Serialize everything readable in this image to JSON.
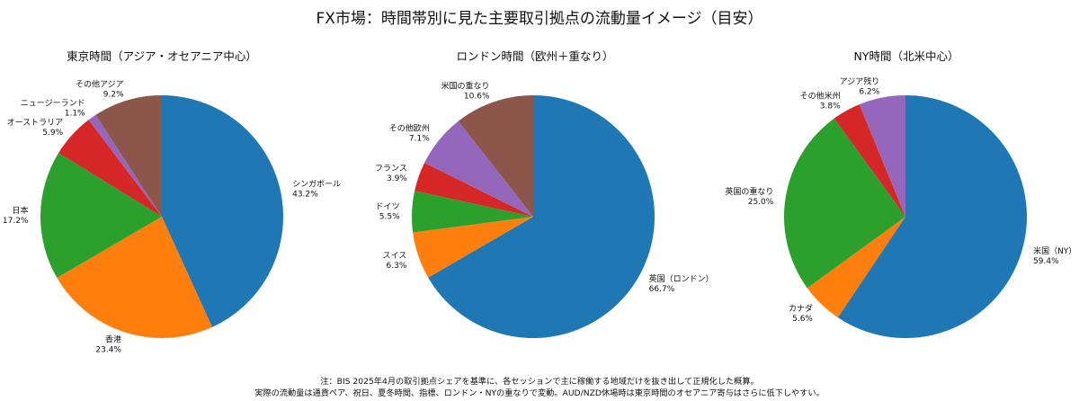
{
  "title": "FX市場：時間帯別に見た主要取引拠点の流動量イメージ（目安）",
  "chart_data": [
    {
      "type": "pie",
      "title": "東京時間（アジア・オセアニア中心）",
      "start": "top",
      "direction": "clockwise",
      "slices": [
        {
          "label": "シンガポール",
          "value": 43.2,
          "display": "43.2%",
          "color": "#1f77b4"
        },
        {
          "label": "香港",
          "value": 23.4,
          "display": "23.4%",
          "color": "#ff7f0e"
        },
        {
          "label": "日本",
          "value": 17.2,
          "display": "17.2%",
          "color": "#2ca02c"
        },
        {
          "label": "オーストラリア",
          "value": 5.9,
          "display": "5.9%",
          "color": "#d62728"
        },
        {
          "label": "ニュージーランド",
          "value": 1.1,
          "display": "1.1%",
          "color": "#9467bd"
        },
        {
          "label": "その他アジア",
          "value": 9.2,
          "display": "9.2%",
          "color": "#8c564b"
        }
      ]
    },
    {
      "type": "pie",
      "title": "ロンドン時間（欧州＋重なり）",
      "start": "top",
      "direction": "clockwise",
      "slices": [
        {
          "label": "英国（ロンドン）",
          "value": 66.7,
          "display": "66.7%",
          "color": "#1f77b4"
        },
        {
          "label": "スイス",
          "value": 6.3,
          "display": "6.3%",
          "color": "#ff7f0e"
        },
        {
          "label": "ドイツ",
          "value": 5.5,
          "display": "5.5%",
          "color": "#2ca02c"
        },
        {
          "label": "フランス",
          "value": 3.9,
          "display": "3.9%",
          "color": "#d62728"
        },
        {
          "label": "その他欧州",
          "value": 7.1,
          "display": "7.1%",
          "color": "#9467bd"
        },
        {
          "label": "米国の重なり",
          "value": 10.6,
          "display": "10.6%",
          "color": "#8c564b"
        }
      ]
    },
    {
      "type": "pie",
      "title": "NY時間（北米中心）",
      "start": "top",
      "direction": "clockwise",
      "slices": [
        {
          "label": "米国（NY）",
          "value": 59.4,
          "display": "59.4%",
          "color": "#1f77b4"
        },
        {
          "label": "カナダ",
          "value": 5.6,
          "display": "5.6%",
          "color": "#ff7f0e"
        },
        {
          "label": "英国の重なり",
          "value": 25.0,
          "display": "25.0%",
          "color": "#2ca02c"
        },
        {
          "label": "その他米州",
          "value": 3.8,
          "display": "3.8%",
          "color": "#d62728"
        },
        {
          "label": "アジア残り",
          "value": 6.2,
          "display": "6.2%",
          "color": "#9467bd"
        }
      ]
    }
  ],
  "notes": [
    "注：BIS 2025年4月の取引拠点シェアを基準に、各セッションで主に稼働する地域だけを抜き出して正規化した概算。",
    "実際の流動量は通貨ペア、祝日、夏冬時間、指標、ロンドン・NYの重なりで変動。AUD/NZD休場時は東京時間のオセアニア寄与はさらに低下しやすい。"
  ]
}
